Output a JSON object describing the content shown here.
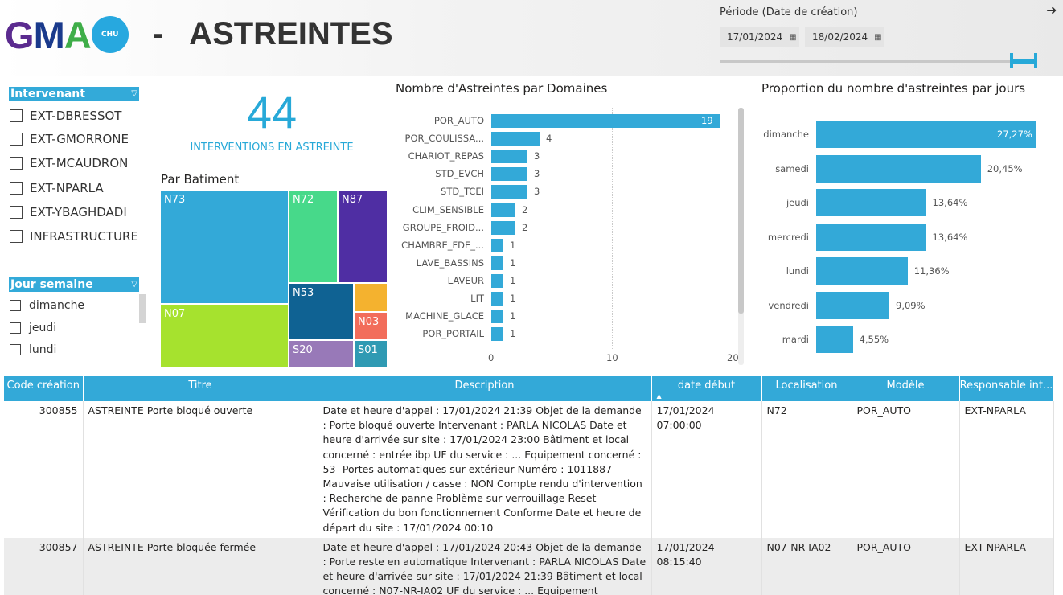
{
  "header": {
    "logo_letters": [
      "G",
      "M",
      "A"
    ],
    "logo_badge": "CHU",
    "title": "-   ASTREINTES"
  },
  "period": {
    "label": "Période (Date de création)",
    "start": "17/01/2024",
    "end": "18/02/2024",
    "calendar_icon": "calendar-icon"
  },
  "colors": {
    "accent": "#33a9d8",
    "header_bg": "#ececec"
  },
  "intervenant": {
    "title": "Intervenant",
    "items": [
      "EXT-DBRESSOT",
      "EXT-GMORRONE",
      "EXT-MCAUDRON",
      "EXT-NPARLA",
      "EXT-YBAGHDADI",
      "INFRASTRUCTURE"
    ]
  },
  "jour_semaine": {
    "title": "Jour semaine",
    "items": [
      "dimanche",
      "jeudi",
      "lundi"
    ]
  },
  "kpi": {
    "value": "44",
    "label": "INTERVENTIONS EN ASTREINTE"
  },
  "treemap": {
    "title": "Par Batiment",
    "cells": [
      {
        "label": "N73",
        "color": "#33a9d8"
      },
      {
        "label": "N72",
        "color": "#47d98a"
      },
      {
        "label": "N87",
        "color": "#4f2ea3"
      },
      {
        "label": "N07",
        "color": "#a6e22e"
      },
      {
        "label": "N53",
        "color": "#0f6293"
      },
      {
        "label": "",
        "color": "#f4b22f"
      },
      {
        "label": "N03",
        "color": "#f26d5b"
      },
      {
        "label": "S20",
        "color": "#9879b8"
      },
      {
        "label": "S01",
        "color": "#2f9ab3"
      }
    ]
  },
  "chart_data": [
    {
      "type": "bar",
      "orientation": "horizontal",
      "title": "Nombre d'Astreintes par Domaines",
      "categories": [
        "POR_AUTO",
        "POR_COULISSA...",
        "CHARIOT_REPAS",
        "STD_EVCH",
        "STD_TCEI",
        "CLIM_SENSIBLE",
        "GROUPE_FROID...",
        "CHAMBRE_FDE_...",
        "LAVE_BASSINS",
        "LAVEUR",
        "LIT",
        "MACHINE_GLACE",
        "POR_PORTAIL"
      ],
      "values": [
        19,
        4,
        3,
        3,
        3,
        2,
        2,
        1,
        1,
        1,
        1,
        1,
        1
      ],
      "value_labels": [
        "19",
        "4",
        "3",
        "3",
        "3",
        "2",
        "2",
        "1",
        "1",
        "1",
        "1",
        "1",
        "1"
      ],
      "xlim": [
        0,
        20
      ],
      "xticks": [
        "0",
        "10",
        "20"
      ]
    },
    {
      "type": "bar",
      "orientation": "horizontal",
      "title": "Proportion du nombre d'astreintes par jours",
      "categories": [
        "dimanche",
        "samedi",
        "jeudi",
        "mercredi",
        "lundi",
        "vendredi",
        "mardi"
      ],
      "values": [
        27.27,
        20.45,
        13.64,
        13.64,
        11.36,
        9.09,
        4.55
      ],
      "value_labels": [
        "27,27%",
        "20,45%",
        "13,64%",
        "13,64%",
        "11,36%",
        "9,09%",
        "4,55%"
      ],
      "xlim": [
        0,
        27.27
      ]
    }
  ],
  "table": {
    "columns": [
      "Code création",
      "Titre",
      "Description",
      "date début",
      "Localisation",
      "Modèle",
      "Responsable int..."
    ],
    "sort_icon": "sort-asc-icon",
    "rows": [
      {
        "code": "300855",
        "titre": "ASTREINTE Porte bloqué ouverte",
        "description": "Date et heure d'appel : 17/01/2024 21:39 Objet de la demande : Porte bloqué ouverte Intervenant : PARLA NICOLAS Date et heure d'arrivée sur site : 17/01/2024 23:00 Bâtiment et local concerné : entrée ibp  UF du service : ... Equipement concerné : 53 -Portes automatiques sur extérieur Numéro :  1011887    Mauvaise utilisation / casse :  NON Compte rendu d'intervention : Recherche de panne Problème sur verrouillage Reset Vérification du bon fonctionnement Conforme Date et heure de départ du site : 17/01/2024 00:10",
        "date": "17/01/2024 07:00:00",
        "localisation": "N72",
        "modele": "POR_AUTO",
        "responsable": "EXT-NPARLA"
      },
      {
        "code": "300857",
        "titre": "ASTREINTE Porte bloquée fermée",
        "description": "Date et heure d'appel : 17/01/2024 20:43 Objet de la demande : Porte reste en automatique Intervenant : PARLA NICOLAS Date et heure d'arrivée sur site : 17/01/2024 21:39 Bâtiment et local concerné : N07-NR-IA02  UF du service : ... Equipement concerné :",
        "date": "17/01/2024 08:15:40",
        "localisation": "N07-NR-IA02",
        "modele": "POR_AUTO",
        "responsable": "EXT-NPARLA"
      }
    ]
  }
}
